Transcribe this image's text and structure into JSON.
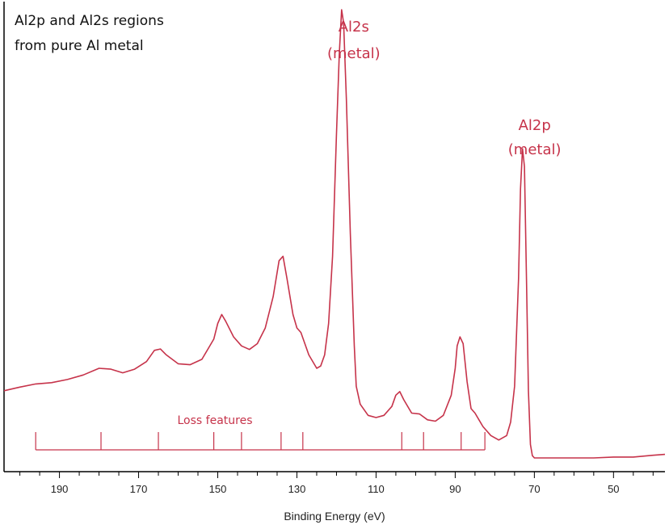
{
  "chart_data": {
    "type": "line",
    "title_lines": [
      "Al2p and Al2s regions",
      "from pure Al metal"
    ],
    "xlabel": "Binding Energy (eV)",
    "ylabel": "",
    "xlim": [
      204,
      37
    ],
    "x_reversed": true,
    "ylim": [
      0,
      1
    ],
    "y_tick_labels_shown": false,
    "x_ticks_major": [
      190,
      170,
      150,
      130,
      110,
      90,
      70,
      50
    ],
    "x_minor_step": 5,
    "series": [
      {
        "color": "#c6334a",
        "points": [
          [
            204,
            0.15
          ],
          [
            200,
            0.158
          ],
          [
            196,
            0.165
          ],
          [
            192,
            0.168
          ],
          [
            188,
            0.175
          ],
          [
            184,
            0.185
          ],
          [
            180,
            0.2
          ],
          [
            177,
            0.198
          ],
          [
            174,
            0.19
          ],
          [
            171,
            0.198
          ],
          [
            168,
            0.215
          ],
          [
            166,
            0.24
          ],
          [
            164.5,
            0.243
          ],
          [
            163,
            0.23
          ],
          [
            160,
            0.21
          ],
          [
            157,
            0.208
          ],
          [
            154,
            0.22
          ],
          [
            151,
            0.265
          ],
          [
            150,
            0.3
          ],
          [
            149,
            0.32
          ],
          [
            148,
            0.305
          ],
          [
            146,
            0.27
          ],
          [
            144,
            0.25
          ],
          [
            142,
            0.242
          ],
          [
            140,
            0.255
          ],
          [
            138,
            0.29
          ],
          [
            136,
            0.36
          ],
          [
            134.5,
            0.44
          ],
          [
            133.5,
            0.45
          ],
          [
            132.5,
            0.4
          ],
          [
            131,
            0.32
          ],
          [
            130,
            0.29
          ],
          [
            129,
            0.28
          ],
          [
            127,
            0.23
          ],
          [
            125,
            0.2
          ],
          [
            124,
            0.205
          ],
          [
            123,
            0.23
          ],
          [
            122,
            0.3
          ],
          [
            121,
            0.45
          ],
          [
            120,
            0.72
          ],
          [
            119.3,
            0.9
          ],
          [
            118.7,
            1.0
          ],
          [
            118.2,
            0.97
          ],
          [
            117.5,
            0.8
          ],
          [
            116.5,
            0.5
          ],
          [
            115.5,
            0.25
          ],
          [
            115,
            0.16
          ],
          [
            114,
            0.12
          ],
          [
            112,
            0.095
          ],
          [
            110,
            0.09
          ],
          [
            108,
            0.095
          ],
          [
            106,
            0.115
          ],
          [
            105,
            0.14
          ],
          [
            104,
            0.148
          ],
          [
            103,
            0.13
          ],
          [
            101,
            0.1
          ],
          [
            99,
            0.098
          ],
          [
            97,
            0.085
          ],
          [
            95,
            0.082
          ],
          [
            93,
            0.095
          ],
          [
            91,
            0.14
          ],
          [
            90,
            0.2
          ],
          [
            89.5,
            0.25
          ],
          [
            88.8,
            0.27
          ],
          [
            88,
            0.255
          ],
          [
            87,
            0.17
          ],
          [
            86,
            0.11
          ],
          [
            85,
            0.1
          ],
          [
            84,
            0.085
          ],
          [
            83,
            0.07
          ],
          [
            81,
            0.05
          ],
          [
            79,
            0.04
          ],
          [
            77,
            0.05
          ],
          [
            76,
            0.08
          ],
          [
            75,
            0.16
          ],
          [
            74,
            0.4
          ],
          [
            73.5,
            0.6
          ],
          [
            73,
            0.69
          ],
          [
            72.5,
            0.65
          ],
          [
            72,
            0.4
          ],
          [
            71.5,
            0.15
          ],
          [
            71,
            0.03
          ],
          [
            70.5,
            0.005
          ],
          [
            70,
            0.0
          ],
          [
            65,
            0.0
          ],
          [
            60,
            0.0
          ],
          [
            55,
            0.0
          ],
          [
            50,
            0.002
          ],
          [
            45,
            0.002
          ],
          [
            40,
            0.006
          ],
          [
            37,
            0.008
          ]
        ]
      }
    ],
    "annotations": [
      {
        "lines": [
          "Al2s",
          "(metal)"
        ],
        "x": 118.7
      },
      {
        "lines": [
          "Al2p",
          "(metal)"
        ],
        "x": 73.0
      }
    ],
    "loss_features": {
      "label": "Loss features",
      "x_start": 196,
      "x_end": 82.5,
      "markers": [
        196,
        179.5,
        165,
        151,
        144,
        134,
        128.5,
        103.5,
        98,
        88.5,
        82.5
      ]
    }
  }
}
